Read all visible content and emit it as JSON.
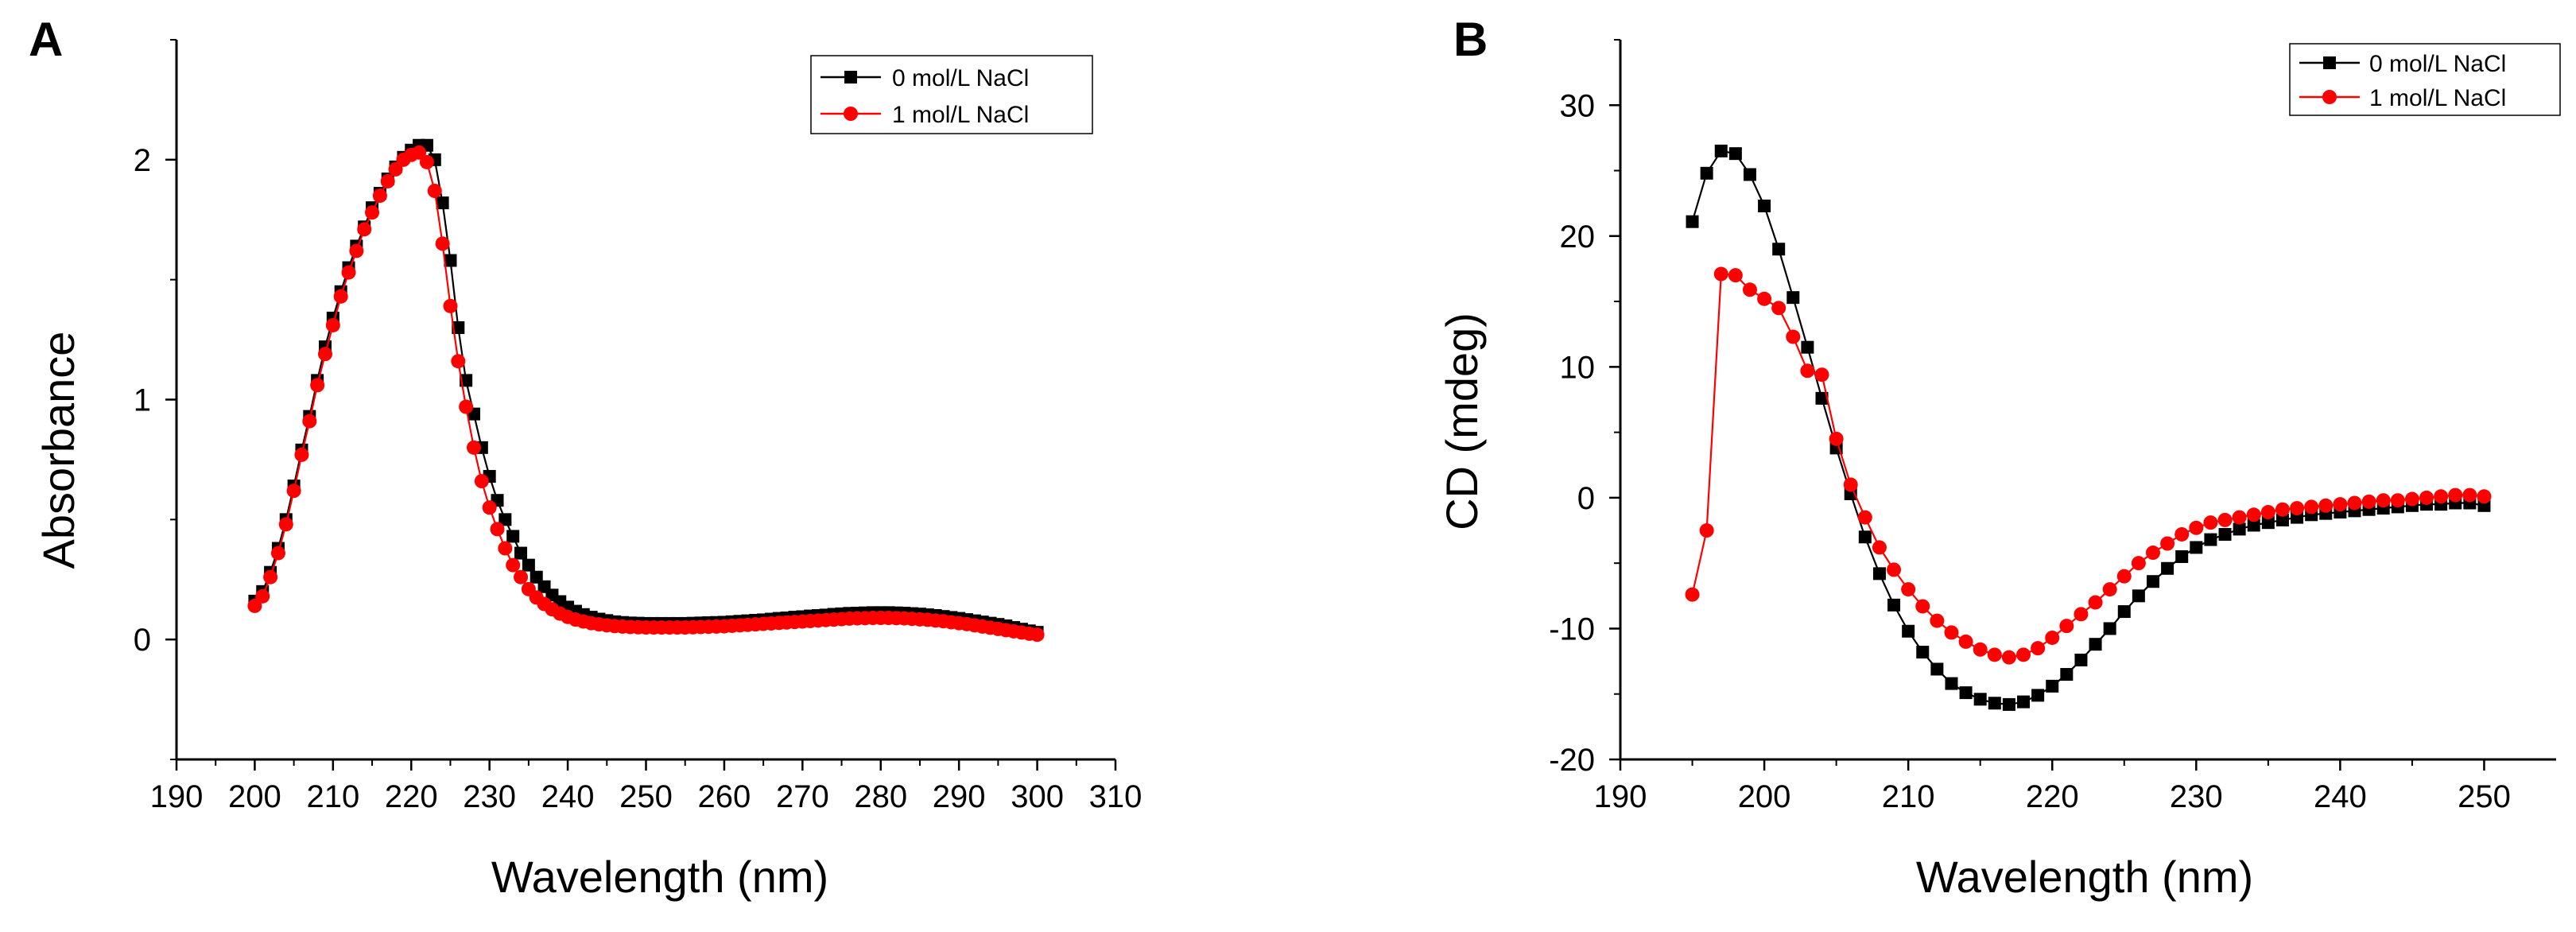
{
  "chart_data": [
    {
      "panel_label": "A",
      "type": "line",
      "title": "",
      "xlabel": "Wavelength (nm)",
      "ylabel": "Absorbance",
      "xlim": [
        190,
        310
      ],
      "ylim": [
        -0.5,
        2.5
      ],
      "xticks": [
        190,
        200,
        210,
        220,
        230,
        240,
        250,
        260,
        270,
        280,
        290,
        300,
        310
      ],
      "xtick_labels": [
        "190",
        "200",
        "210",
        "220",
        "230",
        "240",
        "250",
        "260",
        "270",
        "280",
        "290",
        "300",
        "310"
      ],
      "yticks": [
        0,
        1,
        2
      ],
      "ytick_labels": [
        "0",
        "1",
        "2"
      ],
      "grid": false,
      "legend_position": "top-right",
      "series": [
        {
          "name": "0 mol/L NaCl",
          "color": "#000000",
          "marker": "square",
          "x": [
            200,
            201,
            202,
            203,
            204,
            205,
            206,
            207,
            208,
            209,
            210,
            211,
            212,
            213,
            214,
            215,
            216,
            217,
            218,
            219,
            220,
            221,
            222,
            223,
            224,
            225,
            226,
            227,
            228,
            229,
            230,
            231,
            232,
            233,
            234,
            235,
            236,
            237,
            238,
            239,
            240,
            241,
            242,
            243,
            244,
            245,
            246,
            247,
            248,
            249,
            250,
            251,
            252,
            253,
            254,
            255,
            256,
            257,
            258,
            259,
            260,
            261,
            262,
            263,
            264,
            265,
            266,
            267,
            268,
            269,
            270,
            271,
            272,
            273,
            274,
            275,
            276,
            277,
            278,
            279,
            280,
            281,
            282,
            283,
            284,
            285,
            286,
            287,
            288,
            289,
            290,
            291,
            292,
            293,
            294,
            295,
            296,
            297,
            298,
            299,
            300
          ],
          "y": [
            0.16,
            0.2,
            0.28,
            0.38,
            0.5,
            0.64,
            0.79,
            0.93,
            1.08,
            1.22,
            1.34,
            1.45,
            1.55,
            1.64,
            1.72,
            1.8,
            1.86,
            1.92,
            1.97,
            2.01,
            2.04,
            2.06,
            2.06,
            2.0,
            1.82,
            1.58,
            1.3,
            1.08,
            0.94,
            0.8,
            0.68,
            0.58,
            0.5,
            0.43,
            0.36,
            0.31,
            0.26,
            0.22,
            0.185,
            0.158,
            0.135,
            0.118,
            0.104,
            0.093,
            0.085,
            0.079,
            0.074,
            0.071,
            0.069,
            0.068,
            0.067,
            0.067,
            0.067,
            0.067,
            0.067,
            0.067,
            0.068,
            0.069,
            0.07,
            0.071,
            0.072,
            0.074,
            0.076,
            0.078,
            0.08,
            0.082,
            0.085,
            0.088,
            0.09,
            0.093,
            0.095,
            0.098,
            0.1,
            0.102,
            0.105,
            0.107,
            0.109,
            0.11,
            0.111,
            0.112,
            0.112,
            0.112,
            0.111,
            0.11,
            0.108,
            0.106,
            0.103,
            0.1,
            0.096,
            0.092,
            0.088,
            0.083,
            0.078,
            0.073,
            0.068,
            0.063,
            0.057,
            0.05,
            0.043,
            0.036,
            0.03
          ]
        },
        {
          "name": "1 mol/L NaCl",
          "color": "#ff0000",
          "marker": "circle",
          "x": [
            200,
            201,
            202,
            203,
            204,
            205,
            206,
            207,
            208,
            209,
            210,
            211,
            212,
            213,
            214,
            215,
            216,
            217,
            218,
            219,
            220,
            221,
            222,
            223,
            224,
            225,
            226,
            227,
            228,
            229,
            230,
            231,
            232,
            233,
            234,
            235,
            236,
            237,
            238,
            239,
            240,
            241,
            242,
            243,
            244,
            245,
            246,
            247,
            248,
            249,
            250,
            251,
            252,
            253,
            254,
            255,
            256,
            257,
            258,
            259,
            260,
            261,
            262,
            263,
            264,
            265,
            266,
            267,
            268,
            269,
            270,
            271,
            272,
            273,
            274,
            275,
            276,
            277,
            278,
            279,
            280,
            281,
            282,
            283,
            284,
            285,
            286,
            287,
            288,
            289,
            290,
            291,
            292,
            293,
            294,
            295,
            296,
            297,
            298,
            299,
            300
          ],
          "y": [
            0.14,
            0.18,
            0.26,
            0.36,
            0.48,
            0.62,
            0.77,
            0.91,
            1.06,
            1.19,
            1.31,
            1.43,
            1.53,
            1.62,
            1.71,
            1.78,
            1.85,
            1.91,
            1.96,
            2.0,
            2.02,
            2.03,
            1.99,
            1.87,
            1.65,
            1.39,
            1.16,
            0.97,
            0.8,
            0.66,
            0.55,
            0.46,
            0.38,
            0.31,
            0.26,
            0.21,
            0.175,
            0.148,
            0.126,
            0.108,
            0.094,
            0.083,
            0.075,
            0.068,
            0.063,
            0.059,
            0.056,
            0.054,
            0.052,
            0.051,
            0.05,
            0.05,
            0.05,
            0.05,
            0.05,
            0.05,
            0.051,
            0.052,
            0.053,
            0.054,
            0.055,
            0.057,
            0.059,
            0.061,
            0.063,
            0.065,
            0.067,
            0.069,
            0.071,
            0.073,
            0.075,
            0.077,
            0.079,
            0.081,
            0.083,
            0.085,
            0.087,
            0.088,
            0.089,
            0.09,
            0.09,
            0.09,
            0.089,
            0.088,
            0.086,
            0.084,
            0.082,
            0.079,
            0.076,
            0.072,
            0.068,
            0.064,
            0.059,
            0.054,
            0.049,
            0.044,
            0.039,
            0.034,
            0.029,
            0.024,
            0.02
          ]
        }
      ]
    },
    {
      "panel_label": "B",
      "type": "line",
      "title": "",
      "xlabel": "Wavelength (nm)",
      "ylabel": "CD (mdeg)",
      "xlim": [
        190,
        255
      ],
      "ylim": [
        -20,
        35
      ],
      "xticks": [
        190,
        200,
        210,
        220,
        230,
        240,
        250
      ],
      "xtick_labels": [
        "190",
        "200",
        "210",
        "220",
        "230",
        "240",
        "250"
      ],
      "yticks": [
        -20,
        -10,
        0,
        10,
        20,
        30
      ],
      "ytick_labels": [
        "-20",
        "-10",
        "0",
        "10",
        "20",
        "30"
      ],
      "grid": false,
      "legend_position": "top-right",
      "series": [
        {
          "name": "0 mol/L NaCl",
          "color": "#000000",
          "marker": "square",
          "x": [
            195,
            196,
            197,
            198,
            199,
            200,
            201,
            202,
            203,
            204,
            205,
            206,
            207,
            208,
            209,
            210,
            211,
            212,
            213,
            214,
            215,
            216,
            217,
            218,
            219,
            220,
            221,
            222,
            223,
            224,
            225,
            226,
            227,
            228,
            229,
            230,
            231,
            232,
            233,
            234,
            235,
            236,
            237,
            238,
            239,
            240,
            241,
            242,
            243,
            244,
            245,
            246,
            247,
            248,
            249,
            250
          ],
          "y": [
            21.1,
            24.8,
            26.5,
            26.3,
            24.7,
            22.3,
            19.0,
            15.3,
            11.5,
            7.6,
            3.8,
            0.3,
            -3.0,
            -5.8,
            -8.2,
            -10.2,
            -11.8,
            -13.1,
            -14.2,
            -14.9,
            -15.4,
            -15.7,
            -15.8,
            -15.6,
            -15.1,
            -14.4,
            -13.5,
            -12.4,
            -11.2,
            -10.0,
            -8.7,
            -7.5,
            -6.4,
            -5.4,
            -4.5,
            -3.8,
            -3.2,
            -2.8,
            -2.4,
            -2.1,
            -1.9,
            -1.7,
            -1.5,
            -1.3,
            -1.2,
            -1.1,
            -1.0,
            -0.9,
            -0.8,
            -0.7,
            -0.6,
            -0.5,
            -0.5,
            -0.4,
            -0.4,
            -0.6
          ]
        },
        {
          "name": "1 mol/L NaCl",
          "color": "#ff0000",
          "marker": "circle",
          "x": [
            195,
            196,
            197,
            198,
            199,
            200,
            201,
            202,
            203,
            204,
            205,
            206,
            207,
            208,
            209,
            210,
            211,
            212,
            213,
            214,
            215,
            216,
            217,
            218,
            219,
            220,
            221,
            222,
            223,
            224,
            225,
            226,
            227,
            228,
            229,
            230,
            231,
            232,
            233,
            234,
            235,
            236,
            237,
            238,
            239,
            240,
            241,
            242,
            243,
            244,
            245,
            246,
            247,
            248,
            249,
            250
          ],
          "y": [
            -7.4,
            -2.5,
            17.1,
            17.0,
            15.9,
            15.2,
            14.5,
            12.3,
            9.7,
            9.4,
            4.5,
            1.0,
            -1.5,
            -3.8,
            -5.5,
            -7.0,
            -8.3,
            -9.4,
            -10.3,
            -11.0,
            -11.6,
            -12.0,
            -12.2,
            -12.0,
            -11.5,
            -10.7,
            -9.8,
            -8.9,
            -8.0,
            -7.0,
            -6.0,
            -5.0,
            -4.2,
            -3.5,
            -2.8,
            -2.3,
            -1.9,
            -1.7,
            -1.5,
            -1.3,
            -1.1,
            -0.9,
            -0.8,
            -0.7,
            -0.6,
            -0.5,
            -0.4,
            -0.3,
            -0.2,
            -0.2,
            -0.1,
            0.0,
            0.1,
            0.2,
            0.2,
            0.1
          ]
        }
      ]
    }
  ]
}
